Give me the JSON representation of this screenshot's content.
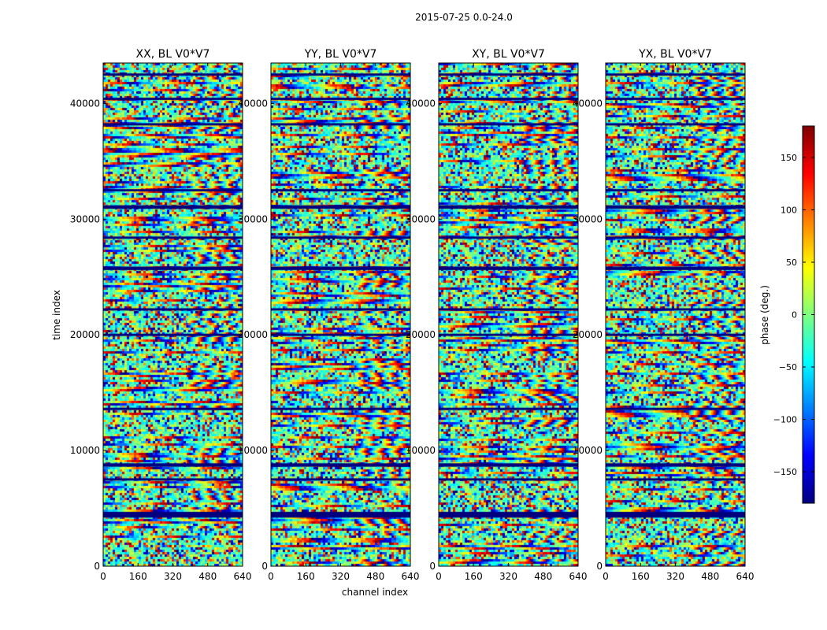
{
  "figure_title": "2015-07-25 0.0-24.0",
  "chart_data": {
    "type": "heatmap",
    "title": "2015-07-25 0.0-24.0",
    "xlabel": "channel index",
    "ylabel": "time index",
    "xlim": [
      0,
      640
    ],
    "ylim": [
      0,
      43500
    ],
    "xticks": [
      0,
      160,
      320,
      480,
      640
    ],
    "yticks": [
      0,
      10000,
      20000,
      30000,
      40000
    ],
    "panels": [
      {
        "title": "XX, BL V0*V7",
        "pol": "XX"
      },
      {
        "title": "YY, BL V0*V7",
        "pol": "YY"
      },
      {
        "title": "XY, BL V0*V7",
        "pol": "XY"
      },
      {
        "title": "YX, BL V0*V7",
        "pol": "YX"
      }
    ],
    "colorbar": {
      "label": "phase (deg.)",
      "vmin": -180,
      "vmax": 180,
      "ticks": [
        -150,
        -100,
        -50,
        0,
        50,
        100,
        150
      ],
      "colormap": "jet"
    },
    "flagged_time_bands": [
      [
        4200,
        4700
      ],
      [
        7400,
        7600
      ],
      [
        8600,
        8900
      ],
      [
        13500,
        13700
      ],
      [
        19900,
        20100
      ],
      [
        22100,
        22300
      ],
      [
        25600,
        25900
      ],
      [
        28300,
        28500
      ],
      [
        30900,
        31200
      ],
      [
        32400,
        32600
      ],
      [
        38100,
        38300
      ],
      [
        40300,
        40500
      ],
      [
        42400,
        42600
      ]
    ]
  }
}
